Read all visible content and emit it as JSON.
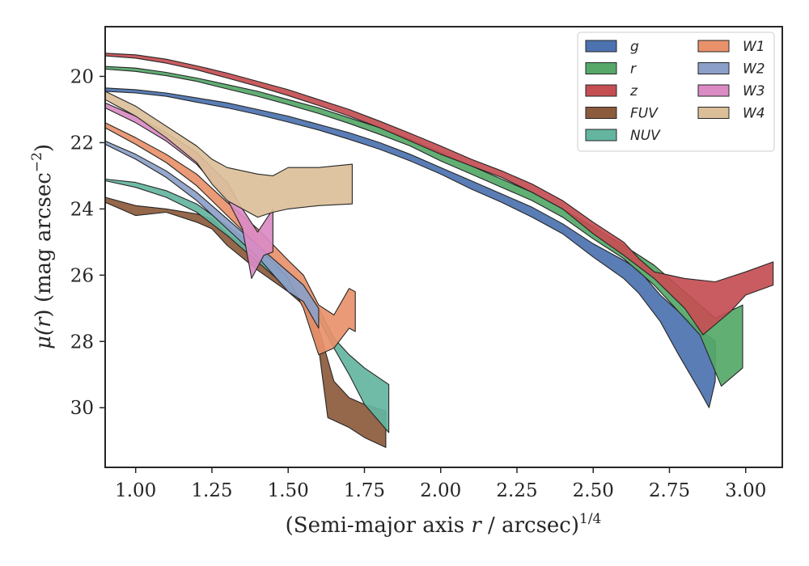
{
  "chart_data": {
    "type": "area",
    "xlabel": "(Semi-major axis r / arcsec)1/4",
    "ylabel": "μ(r) (mag arcsec−2)",
    "xlim": [
      0.9,
      3.12
    ],
    "ylim": [
      31.8,
      18.5
    ],
    "y_inverted": true,
    "xticks": [
      "1.00",
      "1.25",
      "1.50",
      "1.75",
      "2.00",
      "2.25",
      "2.50",
      "2.75",
      "3.00"
    ],
    "yticks": [
      "20",
      "22",
      "24",
      "26",
      "28",
      "30"
    ],
    "legend": {
      "placement": "top-right",
      "columns": 2
    },
    "grid": false,
    "series": [
      {
        "name": "g",
        "color": "#4c72b0",
        "upper": [
          [
            0.9,
            20.35
          ],
          [
            1.0,
            20.4
          ],
          [
            1.1,
            20.5
          ],
          [
            1.2,
            20.65
          ],
          [
            1.3,
            20.8
          ],
          [
            1.4,
            21.0
          ],
          [
            1.5,
            21.2
          ],
          [
            1.6,
            21.45
          ],
          [
            1.7,
            21.7
          ],
          [
            1.8,
            22.0
          ],
          [
            1.9,
            22.35
          ],
          [
            2.0,
            22.75
          ],
          [
            2.1,
            23.15
          ],
          [
            2.2,
            23.55
          ],
          [
            2.3,
            23.95
          ],
          [
            2.4,
            24.45
          ],
          [
            2.5,
            25.05
          ],
          [
            2.6,
            25.55
          ],
          [
            2.65,
            25.85
          ],
          [
            2.72,
            26.6
          ],
          [
            2.78,
            27.1
          ],
          [
            2.85,
            27.65
          ],
          [
            2.9,
            28.0
          ]
        ],
        "lower": [
          [
            0.9,
            20.45
          ],
          [
            1.0,
            20.5
          ],
          [
            1.1,
            20.6
          ],
          [
            1.2,
            20.78
          ],
          [
            1.3,
            20.95
          ],
          [
            1.4,
            21.15
          ],
          [
            1.5,
            21.38
          ],
          [
            1.6,
            21.62
          ],
          [
            1.7,
            21.9
          ],
          [
            1.8,
            22.2
          ],
          [
            1.9,
            22.55
          ],
          [
            2.0,
            22.95
          ],
          [
            2.1,
            23.4
          ],
          [
            2.2,
            23.8
          ],
          [
            2.3,
            24.25
          ],
          [
            2.4,
            24.75
          ],
          [
            2.5,
            25.45
          ],
          [
            2.6,
            26.1
          ],
          [
            2.65,
            26.55
          ],
          [
            2.72,
            27.4
          ],
          [
            2.78,
            28.4
          ],
          [
            2.85,
            29.5
          ],
          [
            2.88,
            30.0
          ],
          [
            2.9,
            29.2
          ]
        ]
      },
      {
        "name": "r",
        "color": "#55a868",
        "upper": [
          [
            0.9,
            19.7
          ],
          [
            1.0,
            19.75
          ],
          [
            1.1,
            19.88
          ],
          [
            1.2,
            20.05
          ],
          [
            1.3,
            20.25
          ],
          [
            1.4,
            20.45
          ],
          [
            1.5,
            20.7
          ],
          [
            1.6,
            20.95
          ],
          [
            1.7,
            21.25
          ],
          [
            1.8,
            21.55
          ],
          [
            1.9,
            21.9
          ],
          [
            2.0,
            22.3
          ],
          [
            2.1,
            22.7
          ],
          [
            2.2,
            23.1
          ],
          [
            2.3,
            23.5
          ],
          [
            2.4,
            24.0
          ],
          [
            2.5,
            24.55
          ],
          [
            2.6,
            25.1
          ],
          [
            2.7,
            25.7
          ],
          [
            2.8,
            26.5
          ],
          [
            2.9,
            27.3
          ],
          [
            2.99,
            26.9
          ]
        ],
        "lower": [
          [
            0.9,
            19.78
          ],
          [
            1.0,
            19.85
          ],
          [
            1.1,
            19.98
          ],
          [
            1.2,
            20.15
          ],
          [
            1.3,
            20.38
          ],
          [
            1.4,
            20.6
          ],
          [
            1.5,
            20.85
          ],
          [
            1.6,
            21.12
          ],
          [
            1.7,
            21.42
          ],
          [
            1.8,
            21.75
          ],
          [
            1.9,
            22.1
          ],
          [
            2.0,
            22.55
          ],
          [
            2.1,
            22.95
          ],
          [
            2.2,
            23.35
          ],
          [
            2.3,
            23.75
          ],
          [
            2.4,
            24.25
          ],
          [
            2.5,
            24.9
          ],
          [
            2.6,
            25.5
          ],
          [
            2.7,
            26.3
          ],
          [
            2.8,
            27.3
          ],
          [
            2.85,
            27.8
          ],
          [
            2.92,
            29.35
          ],
          [
            2.99,
            28.8
          ]
        ]
      },
      {
        "name": "z",
        "color": "#c44e52",
        "upper": [
          [
            0.9,
            19.3
          ],
          [
            1.0,
            19.35
          ],
          [
            1.1,
            19.48
          ],
          [
            1.2,
            19.68
          ],
          [
            1.3,
            19.9
          ],
          [
            1.4,
            20.15
          ],
          [
            1.5,
            20.4
          ],
          [
            1.6,
            20.7
          ],
          [
            1.7,
            21.0
          ],
          [
            1.8,
            21.35
          ],
          [
            1.9,
            21.72
          ],
          [
            2.0,
            22.1
          ],
          [
            2.1,
            22.5
          ],
          [
            2.2,
            22.85
          ],
          [
            2.3,
            23.25
          ],
          [
            2.4,
            23.75
          ],
          [
            2.5,
            24.4
          ],
          [
            2.6,
            25.0
          ],
          [
            2.65,
            25.5
          ],
          [
            2.7,
            25.9
          ],
          [
            2.8,
            26.1
          ],
          [
            2.9,
            26.2
          ],
          [
            3.0,
            25.9
          ],
          [
            3.09,
            25.6
          ]
        ],
        "lower": [
          [
            0.9,
            19.38
          ],
          [
            1.0,
            19.45
          ],
          [
            1.1,
            19.6
          ],
          [
            1.2,
            19.8
          ],
          [
            1.3,
            20.05
          ],
          [
            1.4,
            20.3
          ],
          [
            1.5,
            20.58
          ],
          [
            1.6,
            20.88
          ],
          [
            1.7,
            21.2
          ],
          [
            1.8,
            21.55
          ],
          [
            1.9,
            21.95
          ],
          [
            2.0,
            22.35
          ],
          [
            2.1,
            22.7
          ],
          [
            2.2,
            23.05
          ],
          [
            2.3,
            23.5
          ],
          [
            2.4,
            24.0
          ],
          [
            2.5,
            24.75
          ],
          [
            2.6,
            25.4
          ],
          [
            2.7,
            26.1
          ],
          [
            2.8,
            27.0
          ],
          [
            2.86,
            27.8
          ],
          [
            2.95,
            27.1
          ],
          [
            3.0,
            26.6
          ],
          [
            3.09,
            26.3
          ]
        ]
      },
      {
        "name": "FUV",
        "color": "#8c5a3c",
        "upper": [
          [
            0.9,
            23.65
          ],
          [
            1.0,
            23.9
          ],
          [
            1.1,
            24.0
          ],
          [
            1.2,
            24.15
          ],
          [
            1.25,
            24.3
          ],
          [
            1.3,
            24.75
          ],
          [
            1.4,
            25.4
          ],
          [
            1.5,
            26.0
          ],
          [
            1.55,
            26.5
          ],
          [
            1.6,
            27.6
          ],
          [
            1.65,
            29.2
          ],
          [
            1.7,
            29.7
          ],
          [
            1.75,
            29.9
          ],
          [
            1.82,
            30.1
          ]
        ],
        "lower": [
          [
            0.9,
            23.8
          ],
          [
            1.0,
            24.2
          ],
          [
            1.1,
            24.1
          ],
          [
            1.2,
            24.4
          ],
          [
            1.25,
            24.6
          ],
          [
            1.3,
            25.1
          ],
          [
            1.4,
            25.85
          ],
          [
            1.5,
            26.5
          ],
          [
            1.55,
            26.9
          ],
          [
            1.6,
            28.2
          ],
          [
            1.63,
            30.3
          ],
          [
            1.7,
            30.6
          ],
          [
            1.75,
            30.9
          ],
          [
            1.82,
            31.2
          ]
        ]
      },
      {
        "name": "NUV",
        "color": "#64b5a0",
        "upper": [
          [
            0.9,
            23.1
          ],
          [
            1.0,
            23.2
          ],
          [
            1.1,
            23.45
          ],
          [
            1.2,
            23.85
          ],
          [
            1.3,
            24.5
          ],
          [
            1.4,
            25.2
          ],
          [
            1.5,
            26.0
          ],
          [
            1.55,
            26.5
          ],
          [
            1.6,
            27.0
          ],
          [
            1.65,
            27.9
          ],
          [
            1.7,
            28.4
          ],
          [
            1.75,
            28.8
          ],
          [
            1.83,
            29.3
          ]
        ],
        "lower": [
          [
            0.9,
            23.15
          ],
          [
            1.0,
            23.35
          ],
          [
            1.1,
            23.65
          ],
          [
            1.2,
            24.1
          ],
          [
            1.3,
            24.8
          ],
          [
            1.4,
            25.6
          ],
          [
            1.5,
            26.4
          ],
          [
            1.55,
            26.8
          ],
          [
            1.6,
            27.3
          ],
          [
            1.65,
            28.2
          ],
          [
            1.7,
            29.0
          ],
          [
            1.75,
            29.9
          ],
          [
            1.83,
            30.75
          ]
        ]
      },
      {
        "name": "W1",
        "color": "#e8916a",
        "upper": [
          [
            0.9,
            21.4
          ],
          [
            1.0,
            21.85
          ],
          [
            1.1,
            22.35
          ],
          [
            1.2,
            22.95
          ],
          [
            1.3,
            23.8
          ],
          [
            1.4,
            24.6
          ],
          [
            1.5,
            25.55
          ],
          [
            1.55,
            26.0
          ],
          [
            1.6,
            26.9
          ],
          [
            1.65,
            27.2
          ],
          [
            1.7,
            26.4
          ],
          [
            1.72,
            26.5
          ]
        ],
        "lower": [
          [
            0.9,
            21.55
          ],
          [
            1.0,
            22.05
          ],
          [
            1.1,
            22.6
          ],
          [
            1.2,
            23.3
          ],
          [
            1.3,
            24.2
          ],
          [
            1.4,
            25.1
          ],
          [
            1.5,
            26.1
          ],
          [
            1.55,
            27.0
          ],
          [
            1.6,
            28.4
          ],
          [
            1.65,
            28.2
          ],
          [
            1.7,
            27.6
          ],
          [
            1.72,
            27.7
          ]
        ]
      },
      {
        "name": "W2",
        "color": "#8c9fc8",
        "upper": [
          [
            0.9,
            21.95
          ],
          [
            1.0,
            22.35
          ],
          [
            1.1,
            22.85
          ],
          [
            1.2,
            23.5
          ],
          [
            1.3,
            24.3
          ],
          [
            1.4,
            25.1
          ],
          [
            1.5,
            25.9
          ],
          [
            1.55,
            26.3
          ],
          [
            1.6,
            27.0
          ]
        ],
        "lower": [
          [
            0.9,
            22.05
          ],
          [
            1.0,
            22.5
          ],
          [
            1.1,
            23.05
          ],
          [
            1.2,
            23.75
          ],
          [
            1.3,
            24.6
          ],
          [
            1.4,
            25.45
          ],
          [
            1.5,
            26.5
          ],
          [
            1.55,
            26.8
          ],
          [
            1.6,
            27.6
          ]
        ]
      },
      {
        "name": "W3",
        "color": "#da8bc3",
        "upper": [
          [
            0.9,
            20.8
          ],
          [
            1.0,
            21.2
          ],
          [
            1.1,
            21.7
          ],
          [
            1.2,
            22.3
          ],
          [
            1.3,
            23.2
          ],
          [
            1.35,
            24.0
          ],
          [
            1.4,
            24.7
          ],
          [
            1.45,
            24.0
          ]
        ],
        "lower": [
          [
            0.9,
            20.95
          ],
          [
            1.0,
            21.4
          ],
          [
            1.1,
            21.95
          ],
          [
            1.2,
            22.65
          ],
          [
            1.3,
            23.7
          ],
          [
            1.35,
            24.6
          ],
          [
            1.38,
            26.1
          ],
          [
            1.42,
            25.4
          ],
          [
            1.45,
            25.3
          ]
        ]
      },
      {
        "name": "W4",
        "color": "#dbbf99",
        "upper": [
          [
            0.9,
            20.45
          ],
          [
            1.0,
            20.9
          ],
          [
            1.1,
            21.5
          ],
          [
            1.2,
            22.1
          ],
          [
            1.25,
            22.5
          ],
          [
            1.3,
            22.75
          ],
          [
            1.4,
            22.95
          ],
          [
            1.45,
            23.0
          ],
          [
            1.5,
            22.75
          ],
          [
            1.6,
            22.75
          ],
          [
            1.71,
            22.65
          ]
        ],
        "lower": [
          [
            0.9,
            20.7
          ],
          [
            1.0,
            21.2
          ],
          [
            1.1,
            21.85
          ],
          [
            1.2,
            22.6
          ],
          [
            1.25,
            23.25
          ],
          [
            1.3,
            23.75
          ],
          [
            1.4,
            24.25
          ],
          [
            1.45,
            24.1
          ],
          [
            1.5,
            24.0
          ],
          [
            1.6,
            23.9
          ],
          [
            1.71,
            23.85
          ]
        ]
      }
    ]
  }
}
